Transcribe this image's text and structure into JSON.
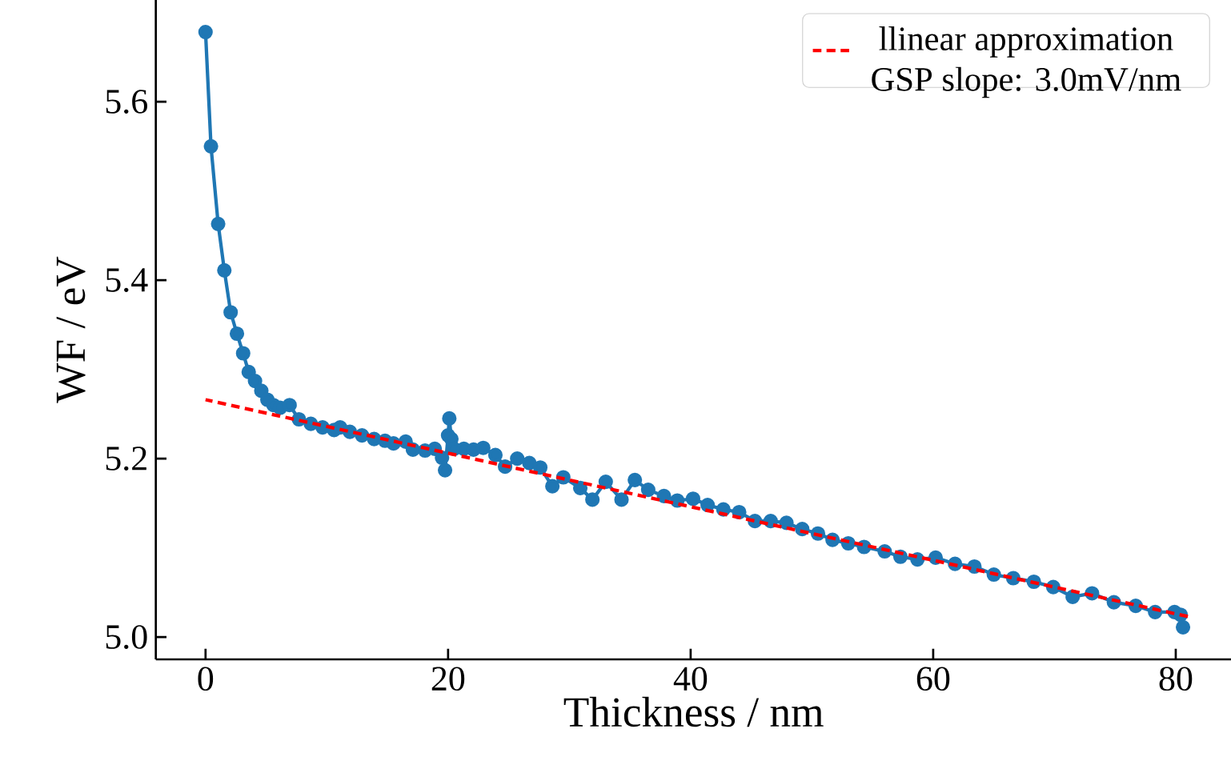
{
  "chart_data": {
    "type": "line",
    "xlabel": "Thickness / nm",
    "ylabel": "WF / eV",
    "xlim": [
      -4.1,
      84.6
    ],
    "ylim": [
      4.975,
      5.714
    ],
    "xticks": [
      0,
      20,
      40,
      60,
      80
    ],
    "yticks": [
      {
        "value": 5.0,
        "label": "5.0"
      },
      {
        "value": 5.2,
        "label": "5.2"
      },
      {
        "value": 5.4,
        "label": "5.4"
      },
      {
        "value": 5.6,
        "label": "5.6"
      }
    ],
    "grid": false,
    "legend": "top right",
    "series": [
      {
        "color": "#1f77b4",
        "marker": "circle",
        "line_style": "solid",
        "x": [
          0,
          0.45,
          1.04,
          1.55,
          2.07,
          2.59,
          3.1,
          3.56,
          4.08,
          4.6,
          5.1,
          5.6,
          6.15,
          6.93,
          7.7,
          8.68,
          9.65,
          10.6,
          11.1,
          11.9,
          12.9,
          13.9,
          14.8,
          15.5,
          16.5,
          17.1,
          18.1,
          18.9,
          19.5,
          19.75,
          20.0,
          20.1,
          20.27,
          20.5,
          21.3,
          22.1,
          22.9,
          23.9,
          24.7,
          25.7,
          26.7,
          27.6,
          28.6,
          29.5,
          30.9,
          31.9,
          33.0,
          34.3,
          35.4,
          36.5,
          37.8,
          38.9,
          40.2,
          41.4,
          42.7,
          44.0,
          45.3,
          46.6,
          47.9,
          49.2,
          50.5,
          51.7,
          53.0,
          54.3,
          56.0,
          57.3,
          58.7,
          60.2,
          61.8,
          63.4,
          65.0,
          66.6,
          68.3,
          69.9,
          71.5,
          73.1,
          74.9,
          76.7,
          78.3,
          79.9,
          80.4,
          80.6
        ],
        "values": [
          5.678,
          5.55,
          5.463,
          5.411,
          5.364,
          5.34,
          5.318,
          5.297,
          5.287,
          5.276,
          5.266,
          5.26,
          5.257,
          5.26,
          5.244,
          5.239,
          5.235,
          5.232,
          5.235,
          5.23,
          5.226,
          5.222,
          5.22,
          5.217,
          5.219,
          5.21,
          5.209,
          5.211,
          5.201,
          5.187,
          5.226,
          5.245,
          5.222,
          5.211,
          5.211,
          5.21,
          5.212,
          5.204,
          5.191,
          5.2,
          5.195,
          5.19,
          5.169,
          5.179,
          5.167,
          5.154,
          5.174,
          5.154,
          5.176,
          5.165,
          5.158,
          5.153,
          5.155,
          5.148,
          5.143,
          5.14,
          5.13,
          5.13,
          5.128,
          5.121,
          5.116,
          5.109,
          5.105,
          5.101,
          5.096,
          5.09,
          5.087,
          5.089,
          5.082,
          5.079,
          5.07,
          5.066,
          5.062,
          5.056,
          5.045,
          5.049,
          5.039,
          5.035,
          5.028,
          5.028,
          5.025,
          5.011
        ]
      },
      {
        "name": "llinear approximation GSP slope: 3.0mV/nm",
        "color": "#ff0000",
        "marker": "none",
        "line_style": "dashed",
        "x": [
          0,
          81
        ],
        "values": [
          5.266,
          5.023
        ]
      }
    ]
  }
}
